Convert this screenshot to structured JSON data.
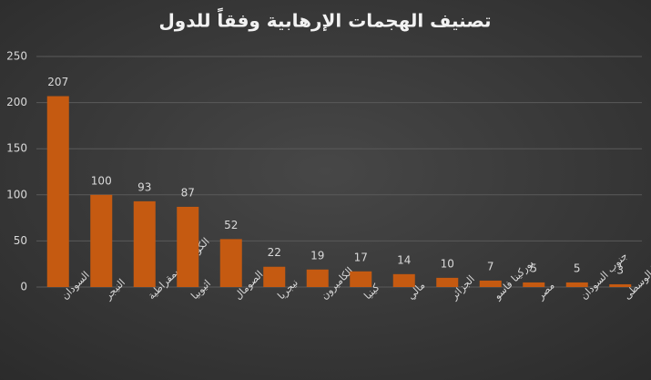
{
  "chart_data": {
    "type": "bar",
    "title": "تصنيف الهجمات الإرهابية وفقاً للدول",
    "categories": [
      "السودان",
      "النيجر",
      "الكونغو الديمقراطية",
      "اثيوبيا",
      "الصومال",
      "نيجريا",
      "الكاميرون",
      "كينيا",
      "مالي",
      "الجزائر",
      "بوركينا فاسو",
      "مصر",
      "جنوب السودان",
      "افريقيا الوسطى"
    ],
    "values": [
      207,
      100,
      93,
      87,
      52,
      22,
      19,
      17,
      14,
      10,
      7,
      5,
      5,
      3
    ],
    "color": "#c55a11",
    "ylim": [
      0,
      250
    ],
    "yticks": [
      0,
      50,
      100,
      150,
      200,
      250
    ],
    "grid": true
  }
}
